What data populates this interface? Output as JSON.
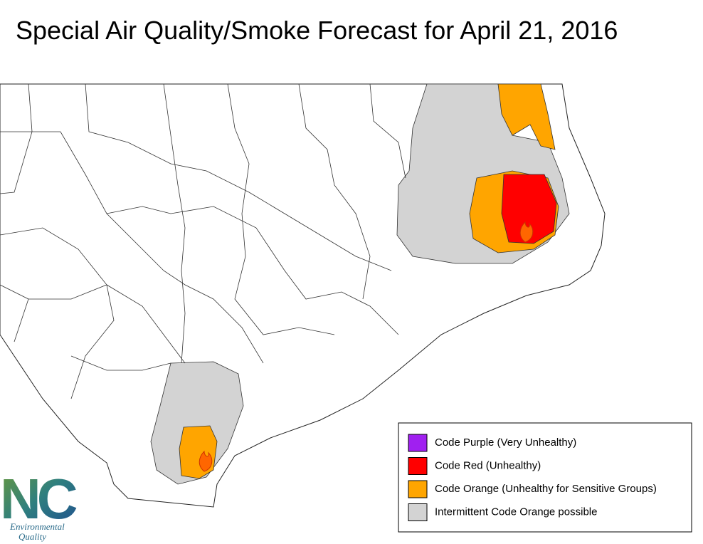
{
  "title": "Special Air Quality/Smoke Forecast for April 21, 2016",
  "legend": [
    {
      "label": "Code Purple (Very Unhealthy)",
      "color": "#a020f0"
    },
    {
      "label": "Code Red (Unhealthy)",
      "color": "#ff0000"
    },
    {
      "label": "Code Orange (Unhealthy for Sensitive Groups)",
      "color": "#ffa500"
    },
    {
      "label": "Intermittent Code Orange possible",
      "color": "#d3d3d3"
    }
  ],
  "logo": {
    "mark": "NC",
    "line1": "Environmental",
    "line2": "Quality"
  }
}
